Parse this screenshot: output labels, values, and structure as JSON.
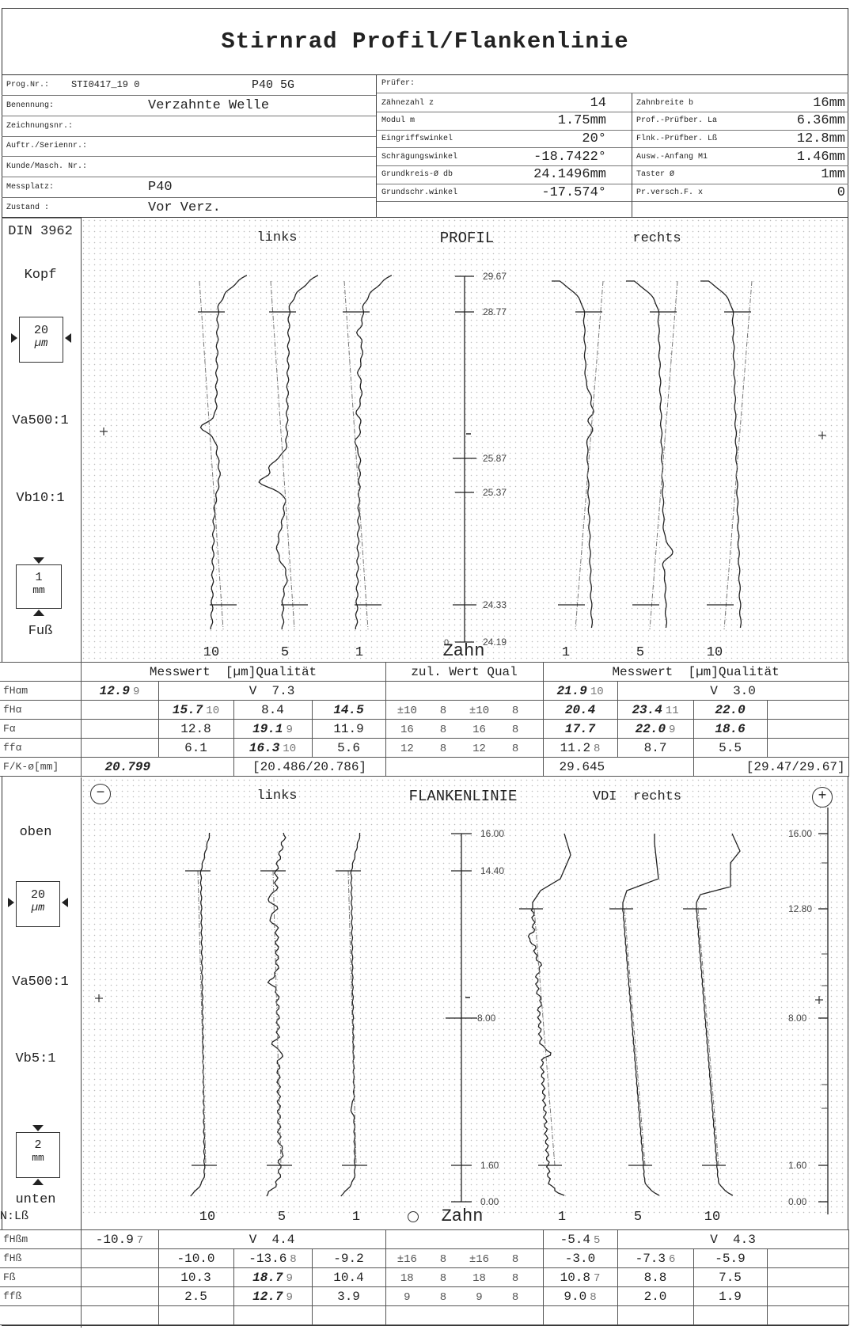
{
  "title": "Stirnrad Profil/Flankenlinie",
  "header": {
    "left": [
      {
        "label": "Prog.Nr.:",
        "value": "STI0417_19 0",
        "value2": "P40 5G"
      },
      {
        "label": "Benennung:",
        "value": "Verzahnte Welle"
      },
      {
        "label": "Zeichnungsnr.:",
        "value": ""
      },
      {
        "label": "Auftr./Seriennr.:",
        "value": ""
      },
      {
        "label": "Kunde/Masch. Nr.:",
        "value": ""
      },
      {
        "label": "Messplatz:",
        "value": "P40"
      },
      {
        "label": "Zustand :",
        "value": "Vor Verz."
      }
    ],
    "pruefer": {
      "label": "Prüfer:",
      "value": ""
    },
    "mid": [
      {
        "label": "Zähnezahl z",
        "value": "14"
      },
      {
        "label": "Modul m",
        "value": "1.75mm"
      },
      {
        "label": "Eingriffswinkel",
        "value": "20°"
      },
      {
        "label": "Schrägungswinkel",
        "value": "-18.7422°"
      },
      {
        "label": "Grundkreis-Ø db",
        "value": "24.1496mm"
      },
      {
        "label": "Grundschr.winkel",
        "value": "-17.574°"
      }
    ],
    "right": [
      {
        "label": "Zahnbreite b",
        "value": "16mm"
      },
      {
        "label": "Prof.-Prüfber. La",
        "value": "6.36mm"
      },
      {
        "label": "Flnk.-Prüfber. Lß",
        "value": "12.8mm"
      },
      {
        "label": "Ausw.-Anfang M1",
        "value": "1.46mm"
      },
      {
        "label": "Taster Ø",
        "value": "1mm"
      },
      {
        "label": "Pr.versch.F. x",
        "value": "0"
      }
    ]
  },
  "profile": {
    "side_labels": {
      "standard": "DIN 3962",
      "top": "Kopf",
      "scale_box": "20",
      "scale_unit": "µm",
      "va": "Va500:1",
      "vb": "Vb10:1",
      "len_box": "1",
      "len_unit": "mm",
      "bottom": "Fuß"
    },
    "heading": {
      "left": "links",
      "center": "PROFIL",
      "right": "rechts"
    },
    "axis_ticks": [
      "29.67",
      "28.77",
      "25.87",
      "25.37",
      "24.33",
      "24.19"
    ],
    "axis_zero": "0",
    "teeth": {
      "left": [
        "10",
        "5",
        "1"
      ],
      "center": "Zahn",
      "right": [
        "1",
        "5",
        "10"
      ]
    },
    "table": {
      "headers": {
        "left": "Messwert  [µm]Qualität",
        "zul": "zul. Wert Qual",
        "right": "Messwert  [µm]Qualität"
      },
      "rows": [
        {
          "label": "fHαm",
          "left": {
            "c1": {
              "v": "12.9",
              "q": "9",
              "b": true
            },
            "merged": "V  7.3"
          },
          "zul": [
            "",
            "",
            "",
            ""
          ],
          "right": {
            "c1": {
              "v": "21.9",
              "q": "10",
              "b": true
            },
            "merged": "V  3.0"
          }
        },
        {
          "label": "fHα",
          "left": {
            "c1": {
              "v": ""
            },
            "c2": {
              "v": "15.7",
              "q": "10",
              "b": true
            },
            "c3": {
              "v": "8.4"
            },
            "c4": {
              "v": "14.5",
              "b": true
            }
          },
          "zul": [
            "±10",
            "8",
            "±10",
            "8"
          ],
          "right": {
            "c1": {
              "v": "20.4",
              "b": true
            },
            "c2": {
              "v": "23.4",
              "q": "11",
              "b": true
            },
            "c3": {
              "v": "22.0",
              "b": true
            },
            "c4": {
              "v": ""
            }
          }
        },
        {
          "label": "Fα",
          "left": {
            "c1": {
              "v": ""
            },
            "c2": {
              "v": "12.8"
            },
            "c3": {
              "v": "19.1",
              "q": "9",
              "b": true
            },
            "c4": {
              "v": "11.9"
            }
          },
          "zul": [
            "16",
            "8",
            "16",
            "8"
          ],
          "right": {
            "c1": {
              "v": "17.7",
              "b": true
            },
            "c2": {
              "v": "22.0",
              "q": "9",
              "b": true
            },
            "c3": {
              "v": "18.6",
              "b": true
            },
            "c4": {
              "v": ""
            }
          }
        },
        {
          "label": "ffα",
          "left": {
            "c1": {
              "v": ""
            },
            "c2": {
              "v": "6.1"
            },
            "c3": {
              "v": "16.3",
              "q": "10",
              "b": true
            },
            "c4": {
              "v": "5.6"
            }
          },
          "zul": [
            "12",
            "8",
            "12",
            "8"
          ],
          "right": {
            "c1": {
              "v": "11.2",
              "q": "8"
            },
            "c2": {
              "v": "8.7"
            },
            "c3": {
              "v": "5.5"
            },
            "c4": {
              "v": ""
            }
          }
        },
        {
          "label": "F/K-ø[mm]",
          "fk": {
            "left_val": "20.799",
            "left_range": "[20.486/20.786]",
            "right_val": "29.645",
            "right_range": "[29.47/29.67]"
          }
        }
      ]
    }
  },
  "flank": {
    "minus_button": "−",
    "plus_button": "+",
    "side_labels": {
      "top": "oben",
      "scale_box": "20",
      "scale_unit": "µm",
      "va": "Va500:1",
      "vb": "Vb5:1",
      "len_box": "2",
      "len_unit": "mm",
      "bottom": "unten",
      "row_label": "N:Lß"
    },
    "heading": {
      "left": "links",
      "center": "FLANKENLINIE",
      "right": "VDI  rechts"
    },
    "axis_ticks": [
      "16.00",
      "14.40",
      "8.00",
      "1.60",
      "0.00"
    ],
    "right_axis_ticks": [
      "16.00",
      "12.80",
      "8.00",
      "1.60",
      "0.00"
    ],
    "teeth": {
      "left": [
        "10",
        "5",
        "1"
      ],
      "center": "Zahn",
      "right": [
        "1",
        "5",
        "10"
      ]
    },
    "table": {
      "rows": [
        {
          "label": "fHßm",
          "left": {
            "c1": {
              "v": "-10.9",
              "q": "7"
            },
            "merged": "V  4.4"
          },
          "zul": [
            "",
            "",
            "",
            ""
          ],
          "right": {
            "c1": {
              "v": "-5.4",
              "q": "5"
            },
            "merged": "V  4.3"
          }
        },
        {
          "label": "fHß",
          "left": {
            "c1": {
              "v": ""
            },
            "c2": {
              "v": "-10.0"
            },
            "c3": {
              "v": "-13.6",
              "q": "8"
            },
            "c4": {
              "v": "-9.2"
            }
          },
          "zul": [
            "±16",
            "8",
            "±16",
            "8"
          ],
          "right": {
            "c1": {
              "v": "-3.0"
            },
            "c2": {
              "v": "-7.3",
              "q": "6"
            },
            "c3": {
              "v": "-5.9"
            },
            "c4": {
              "v": ""
            }
          }
        },
        {
          "label": "Fß",
          "left": {
            "c1": {
              "v": ""
            },
            "c2": {
              "v": "10.3"
            },
            "c3": {
              "v": "18.7",
              "q": "9",
              "b": true
            },
            "c4": {
              "v": "10.4"
            }
          },
          "zul": [
            "18",
            "8",
            "18",
            "8"
          ],
          "right": {
            "c1": {
              "v": "10.8",
              "q": "7"
            },
            "c2": {
              "v": "8.8"
            },
            "c3": {
              "v": "7.5"
            },
            "c4": {
              "v": ""
            }
          }
        },
        {
          "label": "ffß",
          "left": {
            "c1": {
              "v": ""
            },
            "c2": {
              "v": "2.5"
            },
            "c3": {
              "v": "12.7",
              "q": "9",
              "b": true
            },
            "c4": {
              "v": "3.9"
            }
          },
          "zul": [
            "9",
            "8",
            "9",
            "8"
          ],
          "right": {
            "c1": {
              "v": "9.0",
              "q": "8"
            },
            "c2": {
              "v": "2.0"
            },
            "c3": {
              "v": "1.9"
            },
            "c4": {
              "v": ""
            }
          }
        },
        {
          "label": "",
          "empty": true
        }
      ]
    }
  }
}
